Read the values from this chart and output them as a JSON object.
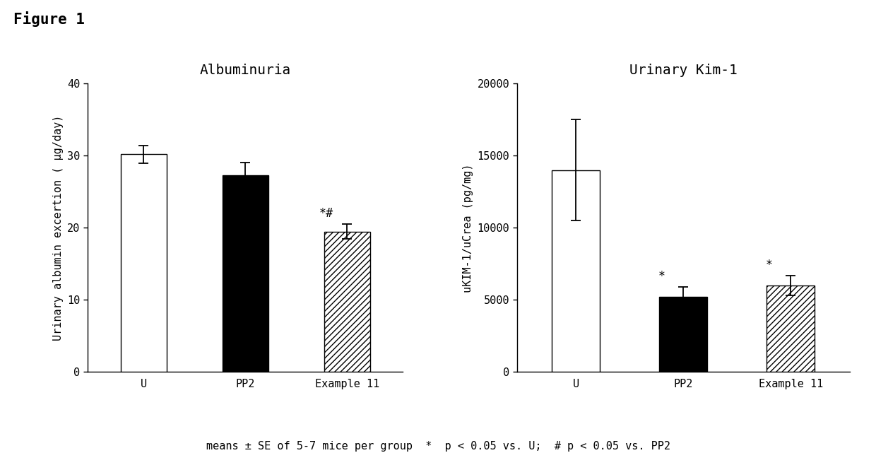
{
  "fig_title": "Figure 1",
  "chart1": {
    "title": "Albuminuria",
    "ylabel": "Urinary albumin excertion ( μg/day)",
    "categories": [
      "U",
      "PP2",
      "Example 11"
    ],
    "values": [
      30.2,
      27.3,
      19.5
    ],
    "errors": [
      1.2,
      1.8,
      1.0
    ],
    "colors": [
      "white",
      "black",
      "hatch"
    ],
    "ylim": [
      0,
      40
    ],
    "yticks": [
      0,
      10,
      20,
      30,
      40
    ],
    "annotations": [
      "",
      "",
      "*#"
    ]
  },
  "chart2": {
    "title": "Urinary Kim-1",
    "ylabel": "uKIM-1/uCrea (pg/mg)",
    "categories": [
      "U",
      "PP2",
      "Example 11"
    ],
    "values": [
      14000,
      5200,
      6000
    ],
    "errors": [
      3500,
      700,
      700
    ],
    "colors": [
      "white",
      "black",
      "hatch"
    ],
    "ylim": [
      0,
      20000
    ],
    "yticks": [
      0,
      5000,
      10000,
      15000,
      20000
    ],
    "annotations": [
      "",
      "*",
      "*"
    ]
  },
  "footnote": "means ± SE of 5-7 mice per group  *  p < 0.05 vs. U;  # p < 0.05 vs. PP2",
  "background_color": "#ffffff",
  "bar_width": 0.45,
  "hatch_pattern": "////",
  "fontsize_title": 14,
  "fontsize_label": 11,
  "fontsize_tick": 11,
  "fontsize_annot": 12,
  "fontsize_fig_title": 15,
  "fontsize_footnote": 11
}
